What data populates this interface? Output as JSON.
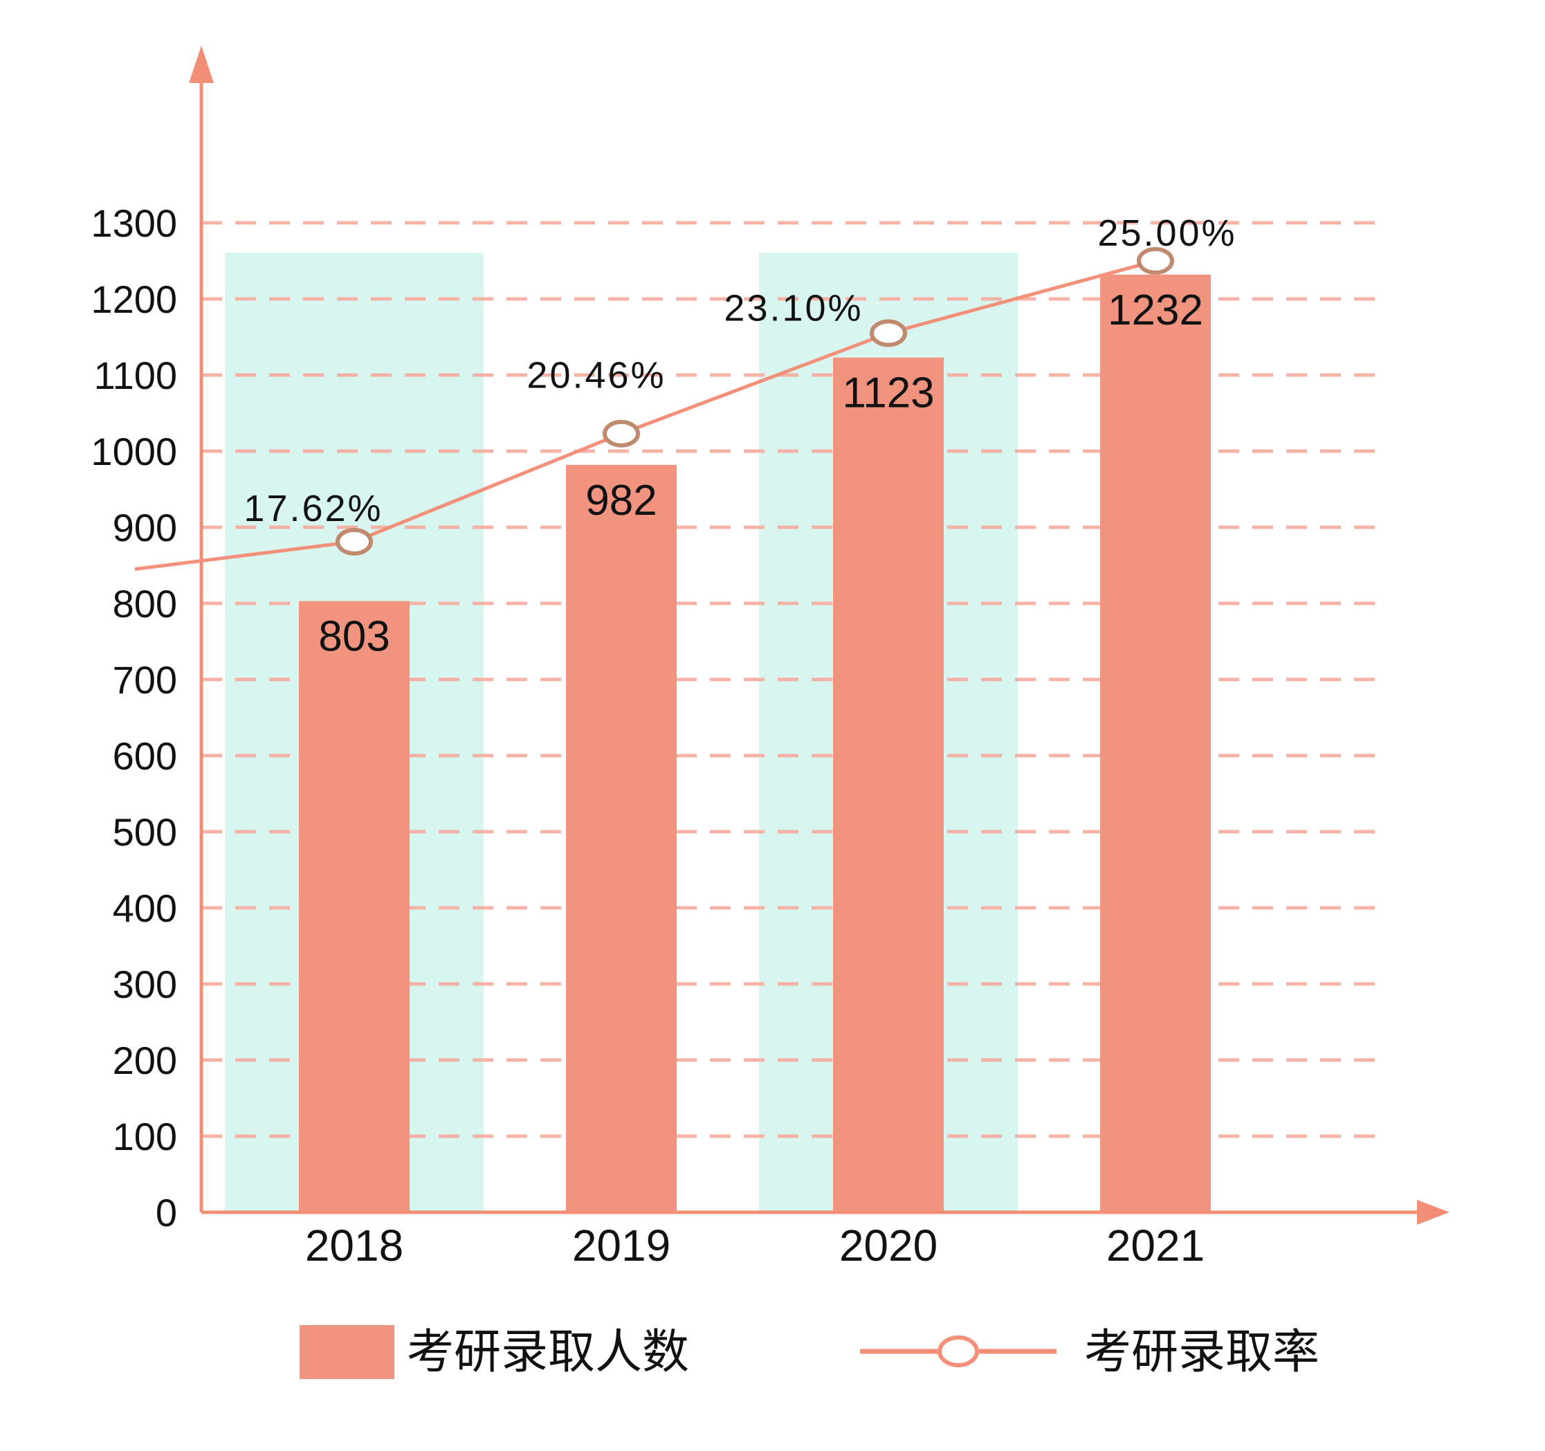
{
  "chart_data": {
    "type": "bar",
    "subtype": "bar-line-combo",
    "title": "",
    "categories": [
      "2018",
      "2019",
      "2020",
      "2021"
    ],
    "series": [
      {
        "name": "考研录取人数",
        "type": "bar",
        "values": [
          803,
          982,
          1123,
          1232
        ],
        "value_labels": [
          "803",
          "982",
          "1123",
          "1232"
        ]
      },
      {
        "name": "考研录取率",
        "type": "line",
        "values_percent": [
          17.62,
          20.46,
          23.1,
          25.0
        ],
        "point_labels": [
          "17.62%",
          "20.46%",
          "23.10%",
          "25.00%"
        ]
      }
    ],
    "y_axis": {
      "min": 0,
      "max": 1300,
      "step": 100,
      "tick_labels": [
        "0",
        "100",
        "200",
        "300",
        "400",
        "500",
        "600",
        "700",
        "800",
        "900",
        "1000",
        "1100",
        "1200",
        "1300"
      ]
    },
    "x_axis": {
      "tick_labels": [
        "2018",
        "2019",
        "2020",
        "2021"
      ]
    },
    "grid": "horizontal-dashed",
    "legend_position": "bottom",
    "highlighted_categories": [
      "2018",
      "2020"
    ]
  },
  "legend": {
    "bar_label": "考研录取人数",
    "line_label": "考研录取率"
  },
  "colors": {
    "bar_fill": "#F0947F",
    "band_fill": "#D8F6EF",
    "axis": "#F28E76",
    "line": "#F2907A",
    "gridline": "#F5AB9E",
    "marker_stroke": "#C08A6E",
    "marker_fill": "#FFFFFF",
    "text": "#111111"
  }
}
